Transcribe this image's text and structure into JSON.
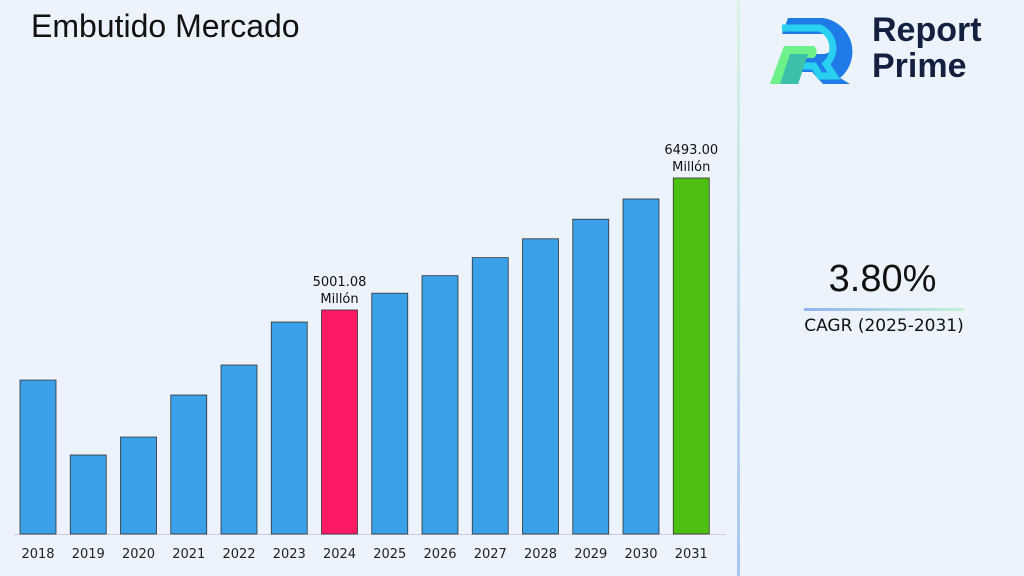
{
  "title": "Embutido Mercado",
  "logo": {
    "line1": "Report",
    "line2": "Prime"
  },
  "cagr": {
    "value": "3.80%",
    "label": "CAGR (2025-2031)"
  },
  "colors": {
    "default": "#3aa0e8",
    "highlight_2024": "#ff1a66",
    "highlight_2031": "#4cbf12"
  },
  "chart_data": {
    "type": "bar",
    "title": "Embutido Mercado",
    "categories": [
      "2018",
      "2019",
      "2020",
      "2021",
      "2022",
      "2023",
      "2024",
      "2025",
      "2026",
      "2027",
      "2028",
      "2029",
      "2030",
      "2031"
    ],
    "values": [
      4209,
      3362,
      3565,
      4040,
      4379,
      4865,
      5001.08,
      5191,
      5389,
      5593,
      5806,
      6027,
      6256,
      6493
    ],
    "data_labels": [
      {
        "index": 6,
        "line1": "5001.08",
        "line2": "Millón"
      },
      {
        "index": 13,
        "line1": "6493.00",
        "line2": "Millón"
      }
    ],
    "ylim": [
      2469,
      6700
    ],
    "grid": false,
    "legend": "none"
  }
}
